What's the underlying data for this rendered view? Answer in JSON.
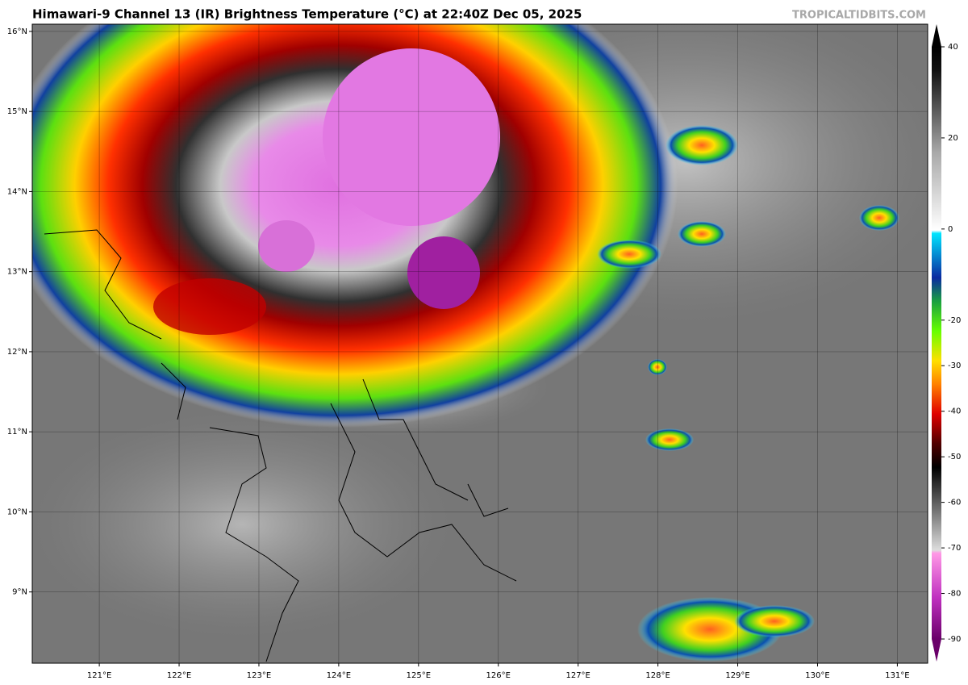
{
  "header": {
    "title": "Himawari-9 Channel 13 (IR) Brightness Temperature (°C) at 22:40Z Dec 05, 2025",
    "credit": "TROPICALTIDBITS.COM"
  },
  "map": {
    "latlim": [
      8.11,
      16.09
    ],
    "lonlim": [
      120.16,
      131.38
    ],
    "lat_ticks": [
      {
        "value": 16,
        "label": "16°N"
      },
      {
        "value": 15,
        "label": "15°N"
      },
      {
        "value": 14,
        "label": "14°N"
      },
      {
        "value": 13,
        "label": "13°N"
      },
      {
        "value": 12,
        "label": "12°N"
      },
      {
        "value": 11,
        "label": "11°N"
      },
      {
        "value": 10,
        "label": "10°N"
      },
      {
        "value": 9,
        "label": "9°N"
      }
    ],
    "lon_ticks": [
      {
        "value": 121,
        "label": "121°E"
      },
      {
        "value": 122,
        "label": "122°E"
      },
      {
        "value": 123,
        "label": "123°E"
      },
      {
        "value": 124,
        "label": "124°E"
      },
      {
        "value": 125,
        "label": "125°E"
      },
      {
        "value": 126,
        "label": "126°E"
      },
      {
        "value": 127,
        "label": "127°E"
      },
      {
        "value": 128,
        "label": "128°E"
      },
      {
        "value": 129,
        "label": "129°E"
      },
      {
        "value": 130,
        "label": "130°E"
      },
      {
        "value": 131,
        "label": "131°E"
      }
    ]
  },
  "colorbar": {
    "lim": [
      -90,
      40
    ],
    "ticks": [
      40,
      20,
      0,
      -20,
      -30,
      -40,
      -50,
      -60,
      -70,
      -80,
      -90
    ]
  }
}
